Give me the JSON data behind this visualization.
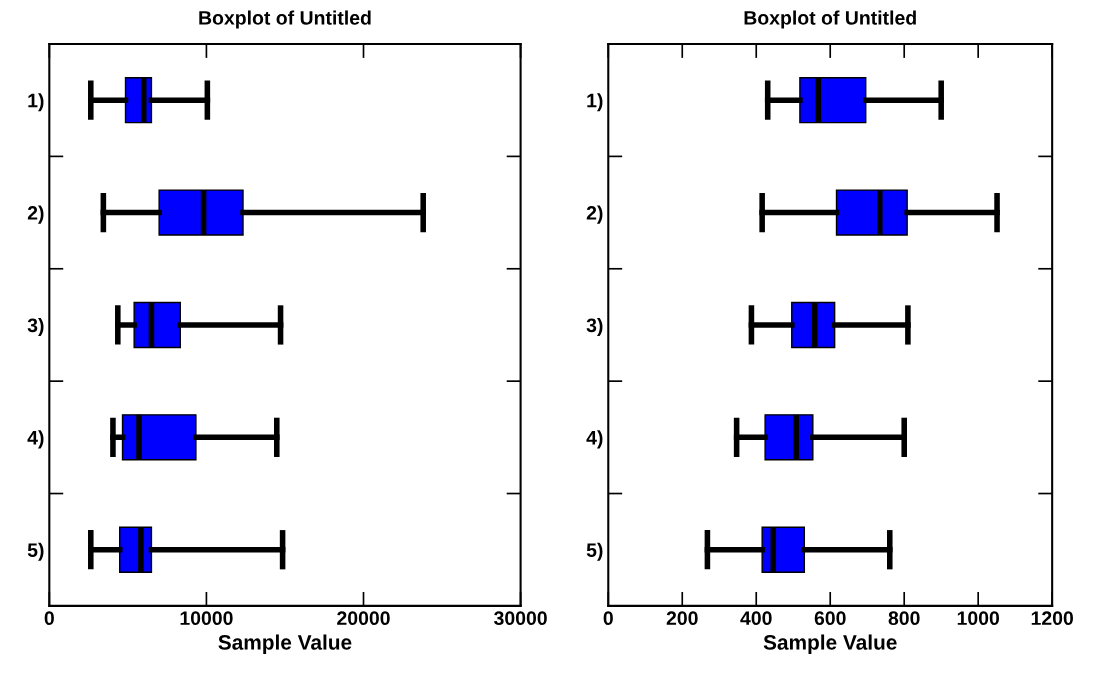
{
  "chart_data": [
    {
      "type": "box",
      "title": "Boxplot of Untitled",
      "xlabel": "Sample Value",
      "orientation": "horizontal",
      "categories": [
        "1)",
        "2)",
        "3)",
        "4)",
        "5)"
      ],
      "color": "#0000ff",
      "xlim": [
        0,
        30000
      ],
      "xticks": [
        0,
        10000,
        20000,
        30000
      ],
      "grid": false,
      "boxes": [
        {
          "low": 2640,
          "q1": 4850,
          "median": 6010,
          "q3": 6500,
          "high": 10060
        },
        {
          "low": 3440,
          "q1": 6990,
          "median": 9820,
          "q3": 12330,
          "high": 23800
        },
        {
          "low": 4360,
          "q1": 5400,
          "median": 6500,
          "q3": 8340,
          "high": 14720
        },
        {
          "low": 4050,
          "q1": 4660,
          "median": 5710,
          "q3": 9330,
          "high": 14480
        },
        {
          "low": 2640,
          "q1": 4480,
          "median": 5830,
          "q3": 6500,
          "high": 14850
        }
      ]
    },
    {
      "type": "box",
      "title": "Boxplot of Untitled",
      "xlabel": "Sample Value",
      "orientation": "horizontal",
      "categories": [
        "1)",
        "2)",
        "3)",
        "4)",
        "5)"
      ],
      "color": "#0000ff",
      "xlim": [
        0,
        1200
      ],
      "xticks": [
        0,
        200,
        400,
        600,
        800,
        1000,
        1200
      ],
      "grid": false,
      "boxes": [
        {
          "low": 431,
          "q1": 518,
          "median": 568,
          "q3": 696,
          "high": 900
        },
        {
          "low": 416,
          "q1": 617,
          "median": 734,
          "q3": 808,
          "high": 1051
        },
        {
          "low": 387,
          "q1": 496,
          "median": 558,
          "q3": 612,
          "high": 810
        },
        {
          "low": 347,
          "q1": 424,
          "median": 508,
          "q3": 553,
          "high": 800
        },
        {
          "low": 268,
          "q1": 416,
          "median": 446,
          "q3": 530,
          "high": 761
        }
      ]
    }
  ]
}
